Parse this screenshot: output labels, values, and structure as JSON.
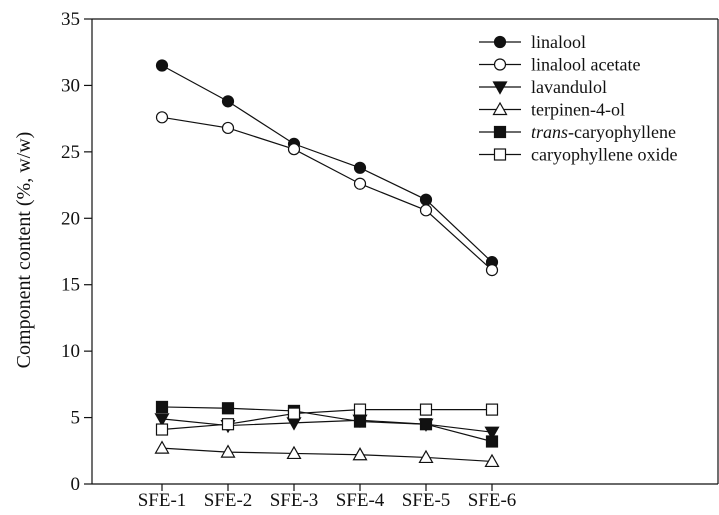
{
  "chart_data": {
    "type": "line",
    "title": "",
    "xlabel": "",
    "ylabel": "Component content (%, w/w)",
    "categories": [
      "SFE-1",
      "SFE-2",
      "SFE-3",
      "SFE-4",
      "SFE-5",
      "SFE-6"
    ],
    "ylim": [
      0,
      35
    ],
    "yticks": [
      0,
      5,
      10,
      15,
      20,
      25,
      30,
      35
    ],
    "grid": false,
    "legend_position": "top-right",
    "series": [
      {
        "name": "linalool",
        "name_prefix_italic": "",
        "marker": "circle",
        "fill": "filled",
        "values": [
          31.5,
          28.8,
          25.6,
          23.8,
          21.4,
          16.7
        ]
      },
      {
        "name": "linalool acetate",
        "name_prefix_italic": "",
        "marker": "circle",
        "fill": "open",
        "values": [
          27.6,
          26.8,
          25.2,
          22.6,
          20.6,
          16.1
        ]
      },
      {
        "name": "lavandulol",
        "name_prefix_italic": "",
        "marker": "triangle-down",
        "fill": "filled",
        "values": [
          4.9,
          4.4,
          4.6,
          4.8,
          4.5,
          3.9
        ]
      },
      {
        "name": "terpinen-4-ol",
        "name_prefix_italic": "",
        "marker": "triangle-up",
        "fill": "open",
        "values": [
          2.7,
          2.4,
          2.3,
          2.2,
          2.0,
          1.7
        ]
      },
      {
        "name": "-caryophyllene",
        "name_prefix_italic": "trans",
        "marker": "square",
        "fill": "filled",
        "values": [
          5.8,
          5.7,
          5.5,
          4.7,
          4.5,
          3.2
        ]
      },
      {
        "name": "caryophyllene oxide",
        "name_prefix_italic": "",
        "marker": "square",
        "fill": "open",
        "values": [
          4.1,
          4.5,
          5.3,
          5.6,
          5.6,
          5.6
        ]
      }
    ]
  }
}
